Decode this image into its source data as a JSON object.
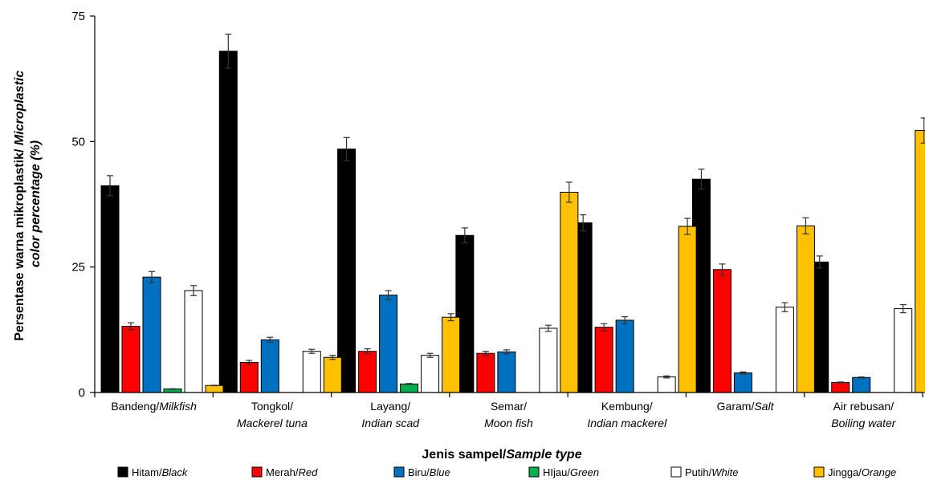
{
  "chart_data": {
    "type": "bar",
    "ylabel": {
      "line1_plain": "Persentase warna mikroplastik/ ",
      "line1_italic": "Microplastic",
      "line2_italic": "color percentage (%)"
    },
    "xlabel": {
      "plain": "Jenis sampel/",
      "italic": "Sample type"
    },
    "ylim": [
      0,
      75
    ],
    "yticks": [
      "0",
      "25",
      "50",
      "75"
    ],
    "grid": false,
    "legend_position": "bottom",
    "categories": [
      {
        "line1": "Bandeng/",
        "line1_italic": "Milkfish",
        "line2": ""
      },
      {
        "line1": "Tongkol/",
        "line1_italic": "",
        "line2": "Mackerel tuna"
      },
      {
        "line1": "Layang/",
        "line1_italic": "",
        "line2": "Indian scad"
      },
      {
        "line1": "Semar/",
        "line1_italic": "",
        "line2": "Moon fish"
      },
      {
        "line1": "Kembung/",
        "line1_italic": "",
        "line2": "Indian mackerel"
      },
      {
        "line1": "Garam/",
        "line1_italic": "Salt",
        "line2": ""
      },
      {
        "line1": "Air rebusan/",
        "line1_italic": "",
        "line2": "Boiling water"
      }
    ],
    "series": [
      {
        "name": "Hitam/",
        "name_italic": "Black",
        "color": "#000000",
        "values": [
          41.2,
          68.0,
          48.5,
          31.3,
          33.8,
          42.5,
          26.0
        ],
        "errors": [
          2.0,
          3.4,
          2.3,
          1.5,
          1.6,
          2.0,
          1.2
        ]
      },
      {
        "name": "Merah/",
        "name_italic": "Red",
        "color": "#ff0000",
        "values": [
          13.2,
          6.0,
          8.2,
          7.8,
          13.0,
          24.5,
          2.0
        ],
        "errors": [
          0.7,
          0.4,
          0.5,
          0.4,
          0.7,
          1.1,
          0.1
        ]
      },
      {
        "name": "Biru/",
        "name_italic": "Blue",
        "color": "#0070c0",
        "values": [
          23.0,
          10.5,
          19.4,
          8.1,
          14.4,
          3.9,
          3.0
        ],
        "errors": [
          1.1,
          0.5,
          0.9,
          0.4,
          0.7,
          0.2,
          0.1
        ]
      },
      {
        "name": "HIjau/",
        "name_italic": "Green",
        "color": "#00b050",
        "values": [
          0.7,
          0,
          1.7,
          0,
          0,
          0,
          0
        ],
        "errors": [
          0.05,
          0,
          0.1,
          0,
          0,
          0,
          0
        ]
      },
      {
        "name": "Putih/",
        "name_italic": "White",
        "color": "#ffffff",
        "values": [
          20.3,
          8.2,
          7.4,
          12.8,
          3.1,
          17.0,
          16.7
        ],
        "errors": [
          1.0,
          0.4,
          0.4,
          0.6,
          0.2,
          0.9,
          0.8
        ]
      },
      {
        "name": "Jingga/",
        "name_italic": "Orange",
        "color": "#ffc000",
        "values": [
          1.4,
          7.0,
          15.0,
          39.9,
          33.1,
          33.2,
          52.2
        ],
        "errors": [
          0.05,
          0.4,
          0.7,
          2.0,
          1.6,
          1.6,
          2.5
        ]
      }
    ]
  }
}
